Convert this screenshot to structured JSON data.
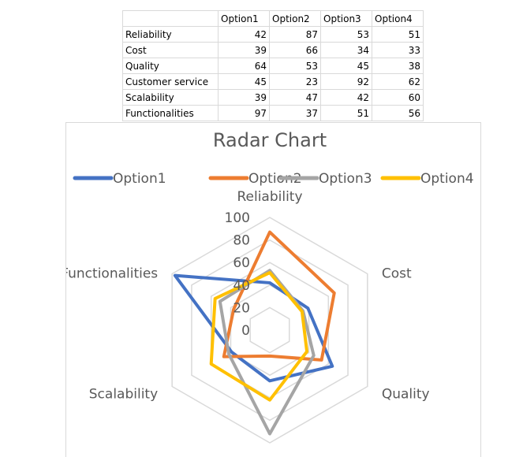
{
  "table": {
    "header": [
      "",
      "Option1",
      "Option2",
      "Option3",
      "Option4"
    ],
    "rows": [
      {
        "label": "Reliability",
        "values": [
          42,
          87,
          53,
          51
        ]
      },
      {
        "label": "Cost",
        "values": [
          39,
          66,
          34,
          33
        ]
      },
      {
        "label": "Quality",
        "values": [
          64,
          53,
          45,
          38
        ]
      },
      {
        "label": "Customer service",
        "values": [
          45,
          23,
          92,
          62
        ]
      },
      {
        "label": "Scalability",
        "values": [
          39,
          47,
          42,
          60
        ]
      },
      {
        "label": "Functionalities",
        "values": [
          97,
          37,
          51,
          56
        ]
      }
    ]
  },
  "chart_data": {
    "type": "radar",
    "title": "Radar Chart",
    "categories": [
      "Reliability",
      "Cost",
      "Quality",
      "Customer service",
      "Scalability",
      "Functionalities"
    ],
    "series": [
      {
        "name": "Option1",
        "color": "#4472C4",
        "values": [
          42,
          39,
          64,
          45,
          39,
          97
        ]
      },
      {
        "name": "Option2",
        "color": "#ED7D31",
        "values": [
          87,
          66,
          53,
          23,
          47,
          37
        ]
      },
      {
        "name": "Option3",
        "color": "#A5A5A5",
        "values": [
          53,
          34,
          45,
          92,
          42,
          51
        ]
      },
      {
        "name": "Option4",
        "color": "#FFC000",
        "values": [
          51,
          33,
          38,
          62,
          60,
          56
        ]
      }
    ],
    "rlim": [
      0,
      100
    ],
    "ticks": [
      0,
      20,
      40,
      60,
      80,
      100
    ],
    "tick_labels": [
      "0",
      "20",
      "40",
      "60",
      "80",
      "100"
    ],
    "grid": true,
    "grid_color": "#D9D9D9",
    "legend_position": "top"
  }
}
